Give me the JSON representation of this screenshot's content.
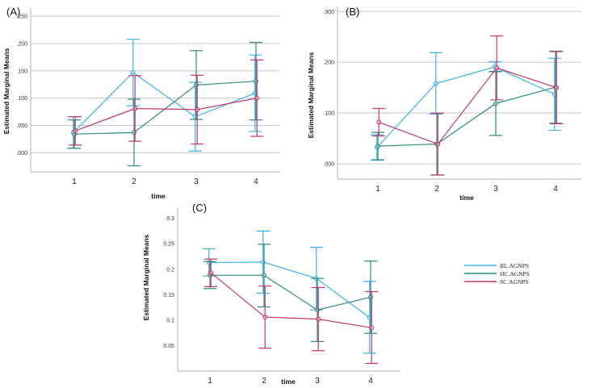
{
  "chart_data": [
    {
      "type": "line",
      "panel_label": "(A)",
      "xlabel": "time",
      "ylabel": "Estimated Marginal Means",
      "categories": [
        "1",
        "2",
        "3",
        "4"
      ],
      "yticks": [
        ".000",
        ".050",
        ".100",
        ".150",
        ".200",
        ".250"
      ],
      "ytick_values": [
        0,
        0.05,
        0.1,
        0.15,
        0.2,
        0.25
      ],
      "ylim": [
        -0.035,
        0.265
      ],
      "grid": true,
      "series": [
        {
          "name": "BL.AGNPS",
          "values": [
            0.037,
            0.147,
            0.066,
            0.109
          ],
          "lower": [
            0.008,
            0.086,
            0.003,
            0.039
          ],
          "upper": [
            0.066,
            0.208,
            0.129,
            0.179
          ]
        },
        {
          "name": "HC.AGNPS",
          "values": [
            0.034,
            0.037,
            0.124,
            0.131
          ],
          "lower": [
            0.008,
            -0.024,
            0.061,
            0.06
          ],
          "upper": [
            0.06,
            0.098,
            0.187,
            0.202
          ]
        },
        {
          "name": "SC.AGNPS",
          "values": [
            0.04,
            0.081,
            0.079,
            0.1
          ],
          "lower": [
            0.014,
            0.021,
            0.016,
            0.03
          ],
          "upper": [
            0.066,
            0.141,
            0.142,
            0.17
          ]
        }
      ]
    },
    {
      "type": "line",
      "panel_label": "(B)",
      "xlabel": "time",
      "ylabel": "Estimated Marginal Means",
      "categories": [
        "1",
        "2",
        "3",
        "4"
      ],
      "yticks": [
        ".000",
        ".100",
        ".200",
        ".300"
      ],
      "ytick_values": [
        0,
        0.1,
        0.2,
        0.3
      ],
      "ylim": [
        -0.03,
        0.31
      ],
      "grid": true,
      "series": [
        {
          "name": "BL.AGNPS",
          "values": [
            0.032,
            0.158,
            0.191,
            0.137
          ],
          "lower": [
            0.007,
            0.098,
            0.181,
            0.066
          ],
          "upper": [
            0.057,
            0.219,
            0.201,
            0.208
          ]
        },
        {
          "name": "HC.AGNPS",
          "values": [
            0.035,
            0.039,
            0.119,
            0.151
          ],
          "lower": [
            0.008,
            -0.022,
            0.056,
            0.08
          ],
          "upper": [
            0.062,
            0.1,
            0.182,
            0.222
          ]
        },
        {
          "name": "SC.AGNPS",
          "values": [
            0.082,
            0.039,
            0.189,
            0.15
          ],
          "lower": [
            0.055,
            -0.022,
            0.126,
            0.079
          ],
          "upper": [
            0.109,
            0.1,
            0.252,
            0.221
          ]
        }
      ]
    },
    {
      "type": "line",
      "panel_label": "(C)",
      "xlabel": "time",
      "ylabel": "Estimated Marginal Means",
      "categories": [
        "1",
        "2",
        "3",
        "4"
      ],
      "yticks": [
        "0.05",
        "0.1",
        "0.15",
        "0.2",
        "0.25",
        "0.3"
      ],
      "ytick_values": [
        0.05,
        0.1,
        0.15,
        0.2,
        0.25,
        0.3
      ],
      "ylim": [
        0.0,
        0.32
      ],
      "grid": false,
      "series": [
        {
          "name": "BL.AGNPS",
          "values": [
            0.213,
            0.214,
            0.182,
            0.105
          ],
          "lower": [
            0.187,
            0.153,
            0.12,
            0.035
          ],
          "upper": [
            0.24,
            0.275,
            0.243,
            0.176
          ]
        },
        {
          "name": "HC.AGNPS",
          "values": [
            0.188,
            0.188,
            0.12,
            0.145
          ],
          "lower": [
            0.162,
            0.126,
            0.058,
            0.074
          ],
          "upper": [
            0.215,
            0.249,
            0.182,
            0.216
          ]
        },
        {
          "name": "SC.AGNPS",
          "values": [
            0.193,
            0.106,
            0.102,
            0.085
          ],
          "lower": [
            0.166,
            0.045,
            0.04,
            0.015
          ],
          "upper": [
            0.22,
            0.167,
            0.164,
            0.156
          ]
        }
      ]
    }
  ],
  "legend": {
    "entries": [
      "BL.AGNPS",
      "HC.AGNPS",
      "SC.AGNPS"
    ],
    "colors": [
      "#3bb3e8",
      "#2e8b7a",
      "#c0396b"
    ]
  },
  "colors": {
    "BL.AGNPS": "#3bb3e8",
    "HC.AGNPS": "#2e8b7a",
    "SC.AGNPS": "#c0396b"
  }
}
